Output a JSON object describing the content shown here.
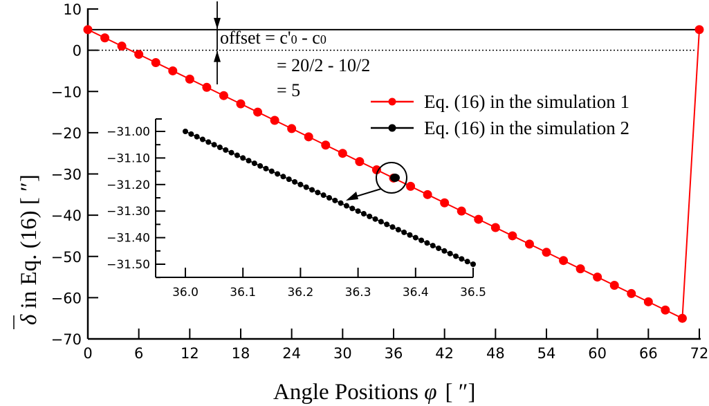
{
  "chart_data": {
    "type": "line",
    "title": "",
    "xlabel": "Angle Positions φ [ ″]",
    "ylabel": "δ̄ in Eq. (16) [ ″]",
    "xlim": [
      0,
      72
    ],
    "ylim": [
      -70,
      10
    ],
    "x_ticks": [
      0,
      6,
      12,
      18,
      24,
      30,
      36,
      42,
      48,
      54,
      60,
      66,
      72
    ],
    "y_ticks": [
      10,
      0,
      -10,
      -20,
      -30,
      -40,
      -50,
      -60,
      -70
    ],
    "grid": false,
    "legend_position": "upper right",
    "series": [
      {
        "name": "Eq. (16) in the simulation 1",
        "color": "#ff0000",
        "x": [
          0,
          2,
          4,
          6,
          8,
          10,
          12,
          14,
          16,
          18,
          20,
          22,
          24,
          26,
          28,
          30,
          32,
          34,
          36,
          38,
          40,
          42,
          44,
          46,
          48,
          50,
          52,
          54,
          56,
          58,
          60,
          62,
          64,
          66,
          68,
          70,
          72
        ],
        "values": [
          5,
          3,
          1,
          -1,
          -3,
          -5,
          -7,
          -9,
          -11,
          -13,
          -15,
          -17,
          -19,
          -21,
          -23,
          -25,
          -27,
          -29,
          -31,
          -33,
          -35,
          -37,
          -39,
          -41,
          -43,
          -45,
          -47,
          -49,
          -51,
          -53,
          -55,
          -57,
          -59,
          -61,
          -63,
          -65,
          5
        ]
      },
      {
        "name": "Eq. (16) in the simulation 2",
        "color": "#000000",
        "x_start": 36.0,
        "x_end": 36.5,
        "x_step": 0.01,
        "y_start": -31.0,
        "y_end": -31.5
      }
    ],
    "annotations": [
      {
        "text": "offset = c'0 - c0",
        "line": 1
      },
      {
        "text": "= 20/2 - 10/2",
        "line": 2
      },
      {
        "text": "= 5",
        "line": 3
      }
    ],
    "reference_lines": [
      {
        "y": 5,
        "style": "solid"
      },
      {
        "y": 0,
        "style": "dotted"
      }
    ],
    "inset": {
      "xlim": [
        35.95,
        36.5
      ],
      "ylim": [
        -31.55,
        -30.95
      ],
      "x_ticks": [
        "36.0",
        "36.1",
        "36.2",
        "36.3",
        "36.4",
        "36.5"
      ],
      "y_ticks": [
        "−31.00",
        "−31.10",
        "−31.20",
        "−31.30",
        "−31.40",
        "−31.50"
      ],
      "zoom_circle_center": [
        36.4,
        -31.2
      ]
    }
  },
  "labels": {
    "xlabel_main": "Angle Positions ",
    "xlabel_symbol": "φ",
    "xlabel_unit": "[ ″]",
    "ylabel_text": " in Eq. (16) [ ″]",
    "ylabel_symbol": "δ",
    "offset_line1": "offset = c'",
    "offset_sub1": "0",
    "offset_mid": " - c",
    "offset_sub2": "0",
    "offset_line2": "= 20/2 - 10/2",
    "offset_line3": "= 5",
    "legend1": "Eq. (16) in the simulation 1",
    "legend2": "Eq. (16) in the simulation 2"
  }
}
